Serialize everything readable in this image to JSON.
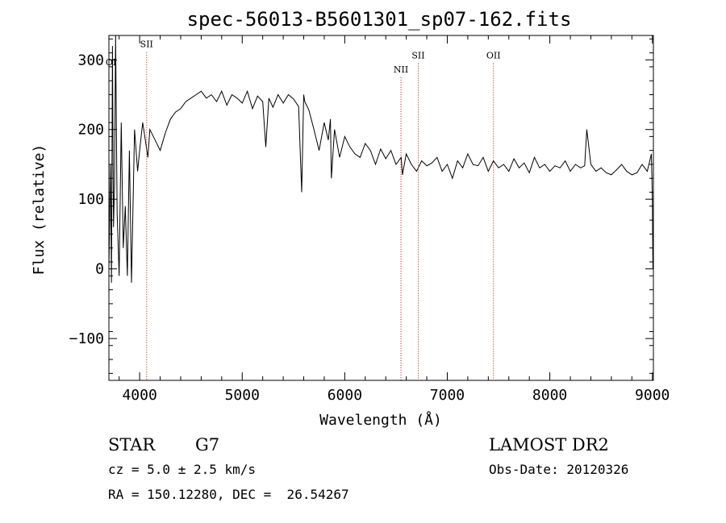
{
  "chart_data": {
    "type": "line",
    "title": "spec-56013-B5601301_sp07-162.fits",
    "xlabel": "Wavelength (Å)",
    "ylabel": "Flux (relative)",
    "xlim": [
      3700,
      9010
    ],
    "ylim": [
      -160,
      335
    ],
    "xticks": [
      4000,
      5000,
      6000,
      7000,
      8000,
      9000
    ],
    "yticks": [
      -100,
      0,
      100,
      200,
      300
    ],
    "line_color": "#000000",
    "marker_color": "#cc0000",
    "spectrum": {
      "x": [
        3700,
        3715,
        3725,
        3735,
        3745,
        3755,
        3765,
        3780,
        3800,
        3820,
        3840,
        3860,
        3880,
        3900,
        3920,
        3950,
        3980,
        4000,
        4030,
        4060,
        4080,
        4100,
        4150,
        4200,
        4250,
        4300,
        4350,
        4400,
        4450,
        4500,
        4550,
        4600,
        4650,
        4700,
        4750,
        4800,
        4850,
        4900,
        4950,
        5000,
        5050,
        5100,
        5150,
        5200,
        5230,
        5260,
        5300,
        5350,
        5400,
        5450,
        5500,
        5550,
        5580,
        5600,
        5610,
        5650,
        5700,
        5750,
        5800,
        5840,
        5860,
        5870,
        5900,
        5950,
        6000,
        6050,
        6100,
        6150,
        6200,
        6250,
        6300,
        6350,
        6400,
        6450,
        6500,
        6550,
        6563,
        6600,
        6650,
        6700,
        6750,
        6800,
        6850,
        6900,
        6950,
        7000,
        7050,
        7100,
        7150,
        7200,
        7250,
        7300,
        7350,
        7400,
        7450,
        7500,
        7550,
        7600,
        7650,
        7700,
        7750,
        7800,
        7850,
        7900,
        7950,
        8000,
        8050,
        8100,
        8150,
        8200,
        8250,
        8300,
        8340,
        8360,
        8400,
        8450,
        8500,
        8550,
        8600,
        8650,
        8700,
        8750,
        8800,
        8850,
        8900,
        8950,
        8990,
        9000,
        9005
      ],
      "y": [
        0,
        150,
        -20,
        320,
        60,
        120,
        335,
        80,
        -10,
        210,
        30,
        90,
        -10,
        170,
        -20,
        200,
        140,
        170,
        210,
        180,
        160,
        200,
        185,
        170,
        195,
        215,
        225,
        230,
        240,
        245,
        250,
        255,
        245,
        250,
        240,
        255,
        235,
        250,
        245,
        238,
        255,
        230,
        248,
        240,
        175,
        245,
        232,
        250,
        238,
        250,
        244,
        233,
        110,
        250,
        240,
        228,
        200,
        170,
        210,
        185,
        215,
        130,
        200,
        160,
        190,
        175,
        165,
        160,
        180,
        170,
        150,
        172,
        158,
        170,
        150,
        160,
        135,
        165,
        150,
        140,
        155,
        148,
        152,
        160,
        140,
        150,
        130,
        155,
        145,
        165,
        150,
        148,
        160,
        140,
        155,
        145,
        150,
        140,
        158,
        145,
        152,
        138,
        160,
        145,
        150,
        140,
        148,
        145,
        155,
        140,
        150,
        145,
        148,
        200,
        150,
        140,
        145,
        138,
        135,
        142,
        150,
        140,
        135,
        138,
        150,
        140,
        165,
        100,
        0
      ]
    },
    "line_markers": [
      {
        "label": "OI",
        "x": 3720,
        "label_y": 292,
        "show_line": false
      },
      {
        "label": "SII",
        "x": 4068,
        "label_y": 318,
        "show_line": true
      },
      {
        "label": "NII",
        "x": 6548,
        "label_y": 282,
        "show_line": true
      },
      {
        "label": "SII",
        "x": 6717,
        "label_y": 302,
        "show_line": true
      },
      {
        "label": "OII",
        "x": 7450,
        "label_y": 302,
        "show_line": true
      }
    ]
  },
  "info": {
    "classification": "STAR",
    "subclass": "G7",
    "cz": "cz = 5.0 ± 2.5 km/s",
    "coords": "RA = 150.12280, DEC =  26.54267",
    "survey": "LAMOST DR2",
    "obs_date": "Obs-Date: 20120326"
  }
}
